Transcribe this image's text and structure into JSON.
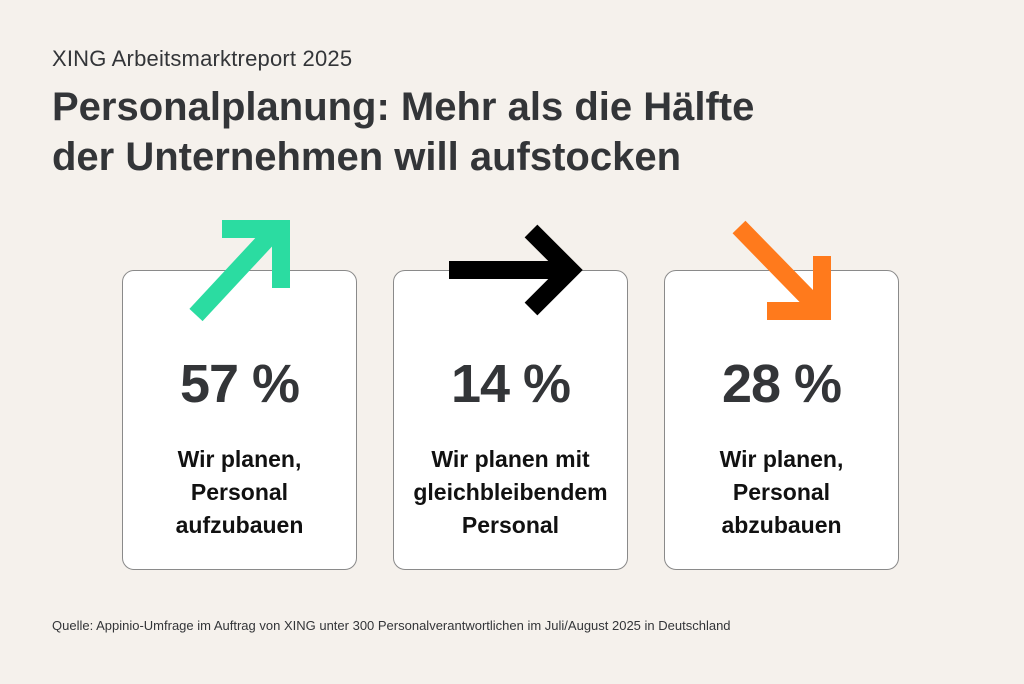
{
  "header": {
    "supertitle": "XING Arbeitsmarktreport 2025",
    "title_line1": "Personalplanung: Mehr als die Hälfte",
    "title_line2": "der Unternehmen will aufstocken"
  },
  "cards": [
    {
      "percent": "57 %",
      "label_lines": [
        "Wir planen,",
        "Personal",
        "aufzubauen"
      ],
      "icon": "arrow-up-right-icon",
      "color": "#2bdca1"
    },
    {
      "percent": "14 %",
      "label_lines": [
        "Wir planen mit",
        "gleichbleibendem",
        "Personal"
      ],
      "icon": "arrow-right-icon",
      "color": "#000000"
    },
    {
      "percent": "28 %",
      "label_lines": [
        "Wir planen,",
        "Personal",
        "abzubauen"
      ],
      "icon": "arrow-down-right-icon",
      "color": "#ff7a1c"
    }
  ],
  "source": "Quelle: Appinio-Umfrage im Auftrag von XING unter 300 Personalverantwortlichen im Juli/August 2025 in Deutschland"
}
